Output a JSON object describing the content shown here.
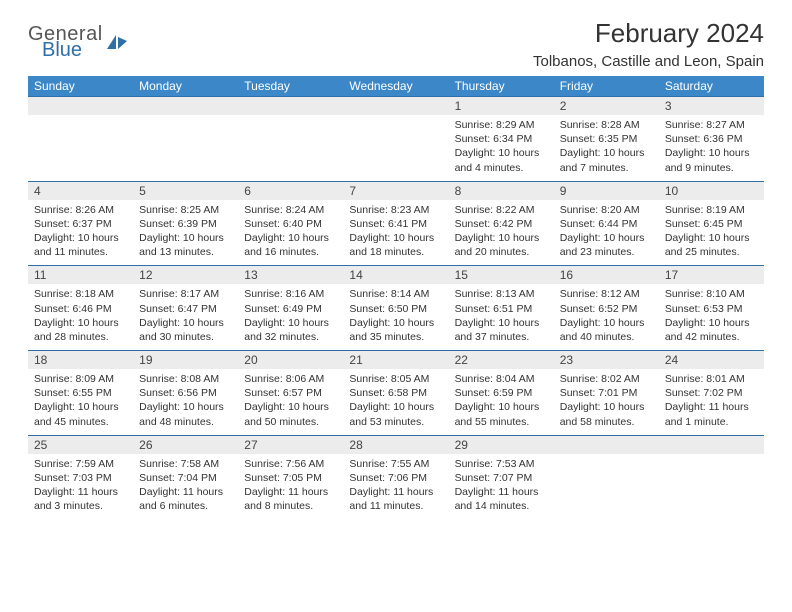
{
  "brand": {
    "part1": "General",
    "part2": "Blue",
    "accent": "#2f6fa8"
  },
  "title": "February 2024",
  "location": "Tolbanos, Castille and Leon, Spain",
  "colors": {
    "header_bg": "#3b87c8",
    "header_fg": "#ffffff",
    "daynum_bg": "#ececec",
    "row_border": "#2f6fa8",
    "page_bg": "#ffffff",
    "text": "#333333"
  },
  "weekdays": [
    "Sunday",
    "Monday",
    "Tuesday",
    "Wednesday",
    "Thursday",
    "Friday",
    "Saturday"
  ],
  "weeks": [
    [
      null,
      null,
      null,
      null,
      {
        "n": "1",
        "sr": "8:29 AM",
        "ss": "6:34 PM",
        "dl": "10 hours and 4 minutes."
      },
      {
        "n": "2",
        "sr": "8:28 AM",
        "ss": "6:35 PM",
        "dl": "10 hours and 7 minutes."
      },
      {
        "n": "3",
        "sr": "8:27 AM",
        "ss": "6:36 PM",
        "dl": "10 hours and 9 minutes."
      }
    ],
    [
      {
        "n": "4",
        "sr": "8:26 AM",
        "ss": "6:37 PM",
        "dl": "10 hours and 11 minutes."
      },
      {
        "n": "5",
        "sr": "8:25 AM",
        "ss": "6:39 PM",
        "dl": "10 hours and 13 minutes."
      },
      {
        "n": "6",
        "sr": "8:24 AM",
        "ss": "6:40 PM",
        "dl": "10 hours and 16 minutes."
      },
      {
        "n": "7",
        "sr": "8:23 AM",
        "ss": "6:41 PM",
        "dl": "10 hours and 18 minutes."
      },
      {
        "n": "8",
        "sr": "8:22 AM",
        "ss": "6:42 PM",
        "dl": "10 hours and 20 minutes."
      },
      {
        "n": "9",
        "sr": "8:20 AM",
        "ss": "6:44 PM",
        "dl": "10 hours and 23 minutes."
      },
      {
        "n": "10",
        "sr": "8:19 AM",
        "ss": "6:45 PM",
        "dl": "10 hours and 25 minutes."
      }
    ],
    [
      {
        "n": "11",
        "sr": "8:18 AM",
        "ss": "6:46 PM",
        "dl": "10 hours and 28 minutes."
      },
      {
        "n": "12",
        "sr": "8:17 AM",
        "ss": "6:47 PM",
        "dl": "10 hours and 30 minutes."
      },
      {
        "n": "13",
        "sr": "8:16 AM",
        "ss": "6:49 PM",
        "dl": "10 hours and 32 minutes."
      },
      {
        "n": "14",
        "sr": "8:14 AM",
        "ss": "6:50 PM",
        "dl": "10 hours and 35 minutes."
      },
      {
        "n": "15",
        "sr": "8:13 AM",
        "ss": "6:51 PM",
        "dl": "10 hours and 37 minutes."
      },
      {
        "n": "16",
        "sr": "8:12 AM",
        "ss": "6:52 PM",
        "dl": "10 hours and 40 minutes."
      },
      {
        "n": "17",
        "sr": "8:10 AM",
        "ss": "6:53 PM",
        "dl": "10 hours and 42 minutes."
      }
    ],
    [
      {
        "n": "18",
        "sr": "8:09 AM",
        "ss": "6:55 PM",
        "dl": "10 hours and 45 minutes."
      },
      {
        "n": "19",
        "sr": "8:08 AM",
        "ss": "6:56 PM",
        "dl": "10 hours and 48 minutes."
      },
      {
        "n": "20",
        "sr": "8:06 AM",
        "ss": "6:57 PM",
        "dl": "10 hours and 50 minutes."
      },
      {
        "n": "21",
        "sr": "8:05 AM",
        "ss": "6:58 PM",
        "dl": "10 hours and 53 minutes."
      },
      {
        "n": "22",
        "sr": "8:04 AM",
        "ss": "6:59 PM",
        "dl": "10 hours and 55 minutes."
      },
      {
        "n": "23",
        "sr": "8:02 AM",
        "ss": "7:01 PM",
        "dl": "10 hours and 58 minutes."
      },
      {
        "n": "24",
        "sr": "8:01 AM",
        "ss": "7:02 PM",
        "dl": "11 hours and 1 minute."
      }
    ],
    [
      {
        "n": "25",
        "sr": "7:59 AM",
        "ss": "7:03 PM",
        "dl": "11 hours and 3 minutes."
      },
      {
        "n": "26",
        "sr": "7:58 AM",
        "ss": "7:04 PM",
        "dl": "11 hours and 6 minutes."
      },
      {
        "n": "27",
        "sr": "7:56 AM",
        "ss": "7:05 PM",
        "dl": "11 hours and 8 minutes."
      },
      {
        "n": "28",
        "sr": "7:55 AM",
        "ss": "7:06 PM",
        "dl": "11 hours and 11 minutes."
      },
      {
        "n": "29",
        "sr": "7:53 AM",
        "ss": "7:07 PM",
        "dl": "11 hours and 14 minutes."
      },
      null,
      null
    ]
  ],
  "labels": {
    "sunrise": "Sunrise:",
    "sunset": "Sunset:",
    "daylight": "Daylight:"
  }
}
